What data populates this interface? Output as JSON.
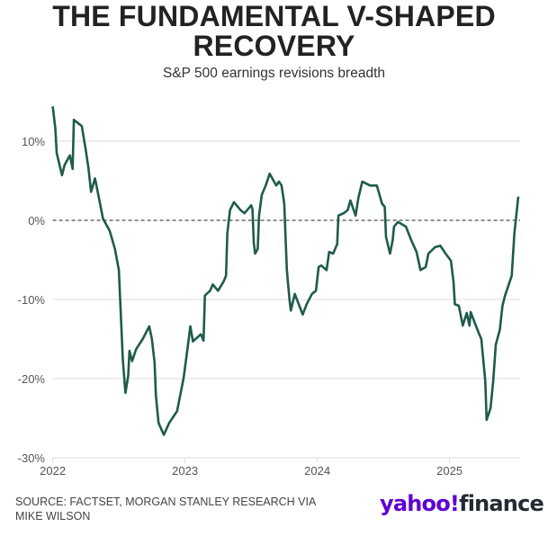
{
  "chart_data": {
    "type": "line",
    "title": "THE FUNDAMENTAL V-SHAPED RECOVERY",
    "subtitle": "S&P 500 earnings revisions breadth",
    "xlabel": "",
    "ylabel": "",
    "xlim": [
      2022.0,
      2025.55
    ],
    "ylim": [
      -30,
      15
    ],
    "x_ticks": [
      2022,
      2023,
      2024,
      2025
    ],
    "x_tick_labels": [
      "2022",
      "2023",
      "2024",
      "2025"
    ],
    "y_ticks": [
      10,
      0,
      -10,
      -20,
      -30
    ],
    "y_tick_labels": [
      "10%",
      "0%",
      "-10%",
      "-20%",
      "-30%"
    ],
    "grid": "horizontal",
    "reference_line": {
      "y": 0,
      "style": "dashed"
    },
    "line_color": "#1e5b4b",
    "series": [
      {
        "x": [
          2022.0,
          2022.02,
          2022.03,
          2022.07,
          2022.09,
          2022.13,
          2022.15,
          2022.16,
          2022.22,
          2022.25,
          2022.27,
          2022.29,
          2022.32,
          2022.35,
          2022.38,
          2022.43,
          2022.47,
          2022.5,
          2022.53,
          2022.55,
          2022.57,
          2022.58,
          2022.6,
          2022.63,
          2022.68,
          2022.73,
          2022.75,
          2022.77,
          2022.78,
          2022.8,
          2022.84,
          2022.88,
          2022.94,
          2022.99,
          2023.02,
          2023.04,
          2023.06,
          2023.12,
          2023.14,
          2023.15,
          2023.19,
          2023.21,
          2023.25,
          2023.29,
          2023.31,
          2023.32,
          2023.34,
          2023.37,
          2023.42,
          2023.45,
          2023.5,
          2023.51,
          2023.52,
          2023.53,
          2023.55,
          2023.56,
          2023.58,
          2023.61,
          2023.64,
          2023.69,
          2023.71,
          2023.73,
          2023.75,
          2023.77,
          2023.79,
          2023.8,
          2023.83,
          2023.86,
          2023.89,
          2023.92,
          2023.96,
          2023.99,
          2024.01,
          2024.03,
          2024.07,
          2024.09,
          2024.12,
          2024.15,
          2024.16,
          2024.2,
          2024.23,
          2024.25,
          2024.29,
          2024.31,
          2024.34,
          2024.4,
          2024.45,
          2024.49,
          2024.51,
          2024.52,
          2024.55,
          2024.57,
          2024.58,
          2024.61,
          2024.67,
          2024.71,
          2024.75,
          2024.78,
          2024.82,
          2024.84,
          2024.89,
          2024.93,
          2024.97,
          2025.01,
          2025.03,
          2025.04,
          2025.07,
          2025.1,
          2025.13,
          2025.15,
          2025.16,
          2025.22,
          2025.24,
          2025.27,
          2025.28,
          2025.31,
          2025.33,
          2025.35,
          2025.38,
          2025.4,
          2025.42,
          2025.47,
          2025.49,
          2025.52
        ],
        "y": [
          14.4,
          11.6,
          8.5,
          5.7,
          7.0,
          8.2,
          6.5,
          12.7,
          11.9,
          8.9,
          6.6,
          3.6,
          5.3,
          2.8,
          0.2,
          -1.3,
          -3.6,
          -6.3,
          -17.6,
          -21.8,
          -19.7,
          -16.5,
          -17.8,
          -16.3,
          -15.0,
          -13.4,
          -15.0,
          -18.0,
          -22.2,
          -25.6,
          -27.1,
          -25.6,
          -24.1,
          -19.9,
          -16.1,
          -13.4,
          -15.3,
          -14.4,
          -15.2,
          -9.5,
          -8.9,
          -8.1,
          -8.9,
          -7.8,
          -7.0,
          -1.7,
          1.3,
          2.3,
          1.3,
          0.9,
          1.9,
          1.4,
          -2.8,
          -4.2,
          -3.6,
          0.6,
          3.2,
          4.4,
          5.9,
          4.4,
          4.9,
          4.4,
          2.1,
          -6.3,
          -10.0,
          -11.4,
          -9.3,
          -10.6,
          -11.9,
          -10.6,
          -9.3,
          -8.9,
          -5.9,
          -5.7,
          -6.3,
          -4.0,
          -4.2,
          -3.0,
          0.6,
          0.9,
          1.3,
          2.5,
          0.6,
          2.8,
          4.9,
          4.4,
          4.4,
          2.1,
          1.7,
          -2.1,
          -4.2,
          -2.5,
          -0.8,
          -0.2,
          -0.8,
          -2.5,
          -4.0,
          -6.3,
          -5.9,
          -4.2,
          -3.4,
          -3.2,
          -4.2,
          -5.1,
          -7.8,
          -10.6,
          -10.8,
          -13.3,
          -11.7,
          -13.3,
          -11.6,
          -14.2,
          -15.0,
          -20.3,
          -25.2,
          -23.7,
          -20.3,
          -15.7,
          -13.8,
          -10.8,
          -9.5,
          -7.0,
          -1.7,
          3.0
        ]
      }
    ]
  },
  "source": "SOURCE: FACTSET, MORGAN STANLEY RESEARCH VIA MIKE WILSON",
  "logo": {
    "brand": "yahoo!",
    "product": "finance",
    "colors": {
      "brand": "#6001d2",
      "product": "#232a31"
    }
  }
}
